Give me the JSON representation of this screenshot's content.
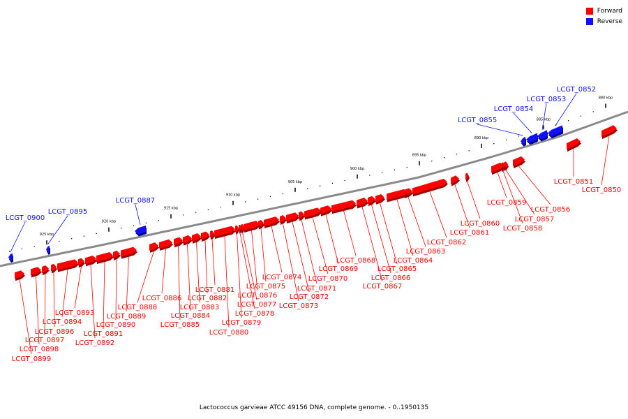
{
  "legend": {
    "forward_label": "Forward",
    "reverse_label": "Reverse",
    "forward_color": "#ff0000",
    "reverse_color": "#1010ff"
  },
  "caption": "Lactococcus garvieae ATCC 49156 DNA, complete genome. - 0..1950135",
  "scale_ticks": [
    {
      "label": "880 kbp",
      "kbp": 880
    },
    {
      "label": "885 kbp",
      "kbp": 885
    },
    {
      "label": "890 kbp",
      "kbp": 890
    },
    {
      "label": "895 kbp",
      "kbp": 895
    },
    {
      "label": "900 kbp",
      "kbp": 900
    },
    {
      "label": "905 kbp",
      "kbp": 905
    },
    {
      "label": "910 kbp",
      "kbp": 910
    },
    {
      "label": "915 kbp",
      "kbp": 915
    },
    {
      "label": "920 kbp",
      "kbp": 920
    },
    {
      "label": "925 kbp",
      "kbp": 925
    }
  ],
  "genes": [
    {
      "name": "LCGT_0850",
      "strand": "forward"
    },
    {
      "name": "LCGT_0851",
      "strand": "forward"
    },
    {
      "name": "LCGT_0852",
      "strand": "reverse"
    },
    {
      "name": "LCGT_0853",
      "strand": "reverse"
    },
    {
      "name": "LCGT_0854",
      "strand": "reverse"
    },
    {
      "name": "LCGT_0855",
      "strand": "reverse"
    },
    {
      "name": "LCGT_0856",
      "strand": "forward"
    },
    {
      "name": "LCGT_0857",
      "strand": "forward"
    },
    {
      "name": "LCGT_0858",
      "strand": "forward"
    },
    {
      "name": "LCGT_0859",
      "strand": "forward"
    },
    {
      "name": "LCGT_0860",
      "strand": "forward"
    },
    {
      "name": "LCGT_0861",
      "strand": "forward"
    },
    {
      "name": "LCGT_0862",
      "strand": "forward"
    },
    {
      "name": "LCGT_0863",
      "strand": "forward"
    },
    {
      "name": "LCGT_0864",
      "strand": "forward"
    },
    {
      "name": "LCGT_0865",
      "strand": "forward"
    },
    {
      "name": "LCGT_0866",
      "strand": "forward"
    },
    {
      "name": "LCGT_0867",
      "strand": "forward"
    },
    {
      "name": "LCGT_0868",
      "strand": "forward"
    },
    {
      "name": "LCGT_0869",
      "strand": "forward"
    },
    {
      "name": "LCGT_0870",
      "strand": "forward"
    },
    {
      "name": "LCGT_0871",
      "strand": "forward"
    },
    {
      "name": "LCGT_0872",
      "strand": "forward"
    },
    {
      "name": "LCGT_0873",
      "strand": "forward"
    },
    {
      "name": "LCGT_0874",
      "strand": "forward"
    },
    {
      "name": "LCGT_0875",
      "strand": "forward"
    },
    {
      "name": "LCGT_0876",
      "strand": "forward"
    },
    {
      "name": "LCGT_0877",
      "strand": "forward"
    },
    {
      "name": "LCGT_0878",
      "strand": "forward"
    },
    {
      "name": "LCGT_0879",
      "strand": "forward"
    },
    {
      "name": "LCGT_0880",
      "strand": "forward"
    },
    {
      "name": "LCGT_0881",
      "strand": "forward"
    },
    {
      "name": "LCGT_0882",
      "strand": "forward"
    },
    {
      "name": "LCGT_0883",
      "strand": "forward"
    },
    {
      "name": "LCGT_0884",
      "strand": "forward"
    },
    {
      "name": "LCGT_0885",
      "strand": "forward"
    },
    {
      "name": "LCGT_0886",
      "strand": "forward"
    },
    {
      "name": "LCGT_0887",
      "strand": "reverse"
    },
    {
      "name": "LCGT_0888",
      "strand": "forward"
    },
    {
      "name": "LCGT_0889",
      "strand": "forward"
    },
    {
      "name": "LCGT_0890",
      "strand": "forward"
    },
    {
      "name": "LCGT_0891",
      "strand": "forward"
    },
    {
      "name": "LCGT_0892",
      "strand": "forward"
    },
    {
      "name": "LCGT_0893",
      "strand": "forward"
    },
    {
      "name": "LCGT_0894",
      "strand": "forward"
    },
    {
      "name": "LCGT_0895",
      "strand": "reverse"
    },
    {
      "name": "LCGT_0896",
      "strand": "forward"
    },
    {
      "name": "LCGT_0897",
      "strand": "forward"
    },
    {
      "name": "LCGT_0898",
      "strand": "forward"
    },
    {
      "name": "LCGT_0899",
      "strand": "forward"
    },
    {
      "name": "LCGT_0900",
      "strand": "reverse"
    }
  ]
}
